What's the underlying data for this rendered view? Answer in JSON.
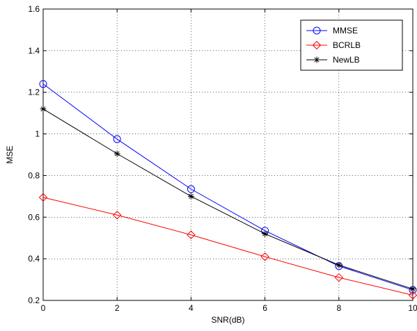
{
  "chart_data": {
    "type": "line",
    "title": "",
    "xlabel": "SNR(dB)",
    "ylabel": "MSE",
    "xlim": [
      0,
      10
    ],
    "ylim": [
      0.2,
      1.6
    ],
    "xticks": [
      "0",
      "2",
      "4",
      "6",
      "8",
      "10"
    ],
    "yticks": [
      "0.2",
      "0.4",
      "0.6",
      "0.8",
      "1",
      "1.2",
      "1.4",
      "1.6"
    ],
    "grid": true,
    "legend_position": "top-right",
    "x": [
      0,
      2,
      4,
      6,
      8,
      10
    ],
    "series": [
      {
        "name": "MMSE",
        "color": "#0000ff",
        "marker": "circle",
        "values": [
          1.24,
          0.975,
          0.735,
          0.535,
          0.365,
          0.25
        ]
      },
      {
        "name": "BCRLB",
        "color": "#ff0000",
        "marker": "diamond",
        "values": [
          0.695,
          0.61,
          0.515,
          0.41,
          0.31,
          0.225
        ]
      },
      {
        "name": "NewLB",
        "color": "#000000",
        "marker": "asterisk",
        "values": [
          1.12,
          0.905,
          0.7,
          0.52,
          0.37,
          0.255
        ]
      }
    ]
  }
}
